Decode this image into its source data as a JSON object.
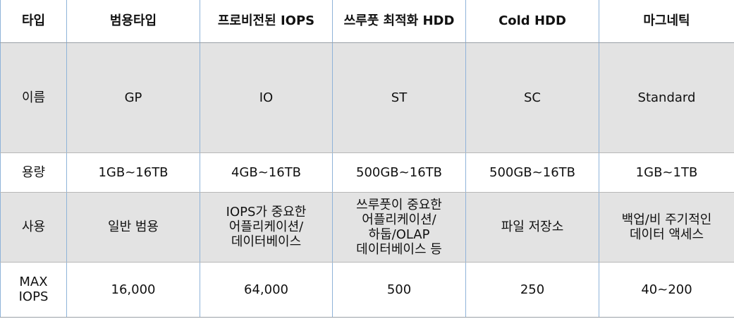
{
  "header": [
    "타입",
    "범용타입",
    "프로비전된 IOPS",
    "쓰루풋 최적화 HDD",
    "Cold HDD",
    "마그네틱"
  ],
  "rows": [
    {
      "label": "이름",
      "cells": [
        "GP",
        "IO",
        "ST",
        "SC",
        "Standard"
      ]
    },
    {
      "label": "용량",
      "cells": [
        "1GB~16TB",
        "4GB~16TB",
        "500GB~16TB",
        "500GB~16TB",
        "1GB~1TB"
      ]
    },
    {
      "label": "사용",
      "cells": [
        "일반 범용",
        "IOPS가 중요한 어플리케이션/데이터베이스",
        "쓰루풋이 중요한 어플리케이션/하둡/OLAP 데이터베이스 등",
        "파일 저장소",
        "백업/비 주기적인 데이터 액세스"
      ]
    },
    {
      "label": "MAX IOPS",
      "cells": [
        "16,000",
        "64,000",
        "500",
        "250",
        "40~200"
      ]
    }
  ]
}
